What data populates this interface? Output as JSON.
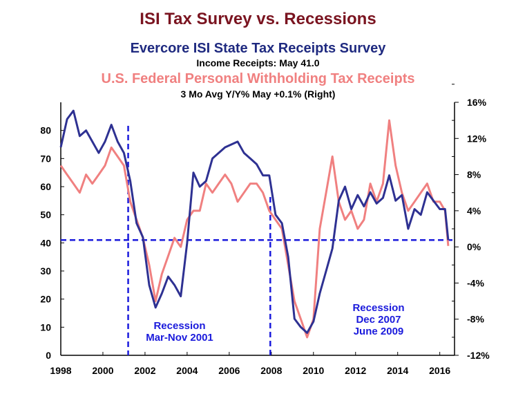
{
  "chart_data": {
    "type": "line",
    "title": "ISI Tax Survey vs. Recessions",
    "series": [
      {
        "name": "Evercore ISI State Tax Receipts Survey",
        "label": "Income Receipts:  May  41.0",
        "axis": "left",
        "color": "#2e3192",
        "x": [
          1998.0,
          1998.3,
          1998.6,
          1998.9,
          1999.2,
          1999.5,
          1999.8,
          2000.1,
          2000.4,
          2000.7,
          2001.0,
          2001.3,
          2001.6,
          2001.9,
          2002.2,
          2002.5,
          2002.8,
          2003.1,
          2003.4,
          2003.7,
          2004.0,
          2004.3,
          2004.6,
          2004.9,
          2005.2,
          2005.5,
          2005.8,
          2006.1,
          2006.4,
          2006.7,
          2007.0,
          2007.3,
          2007.6,
          2007.9,
          2008.2,
          2008.5,
          2008.8,
          2009.1,
          2009.4,
          2009.7,
          2010.0,
          2010.3,
          2010.6,
          2010.9,
          2011.2,
          2011.5,
          2011.8,
          2012.1,
          2012.4,
          2012.7,
          2013.0,
          2013.3,
          2013.6,
          2013.9,
          2014.2,
          2014.5,
          2014.8,
          2015.1,
          2015.4,
          2015.7,
          2016.0,
          2016.25,
          2016.4
        ],
        "values": [
          74,
          84,
          87,
          78,
          80,
          76,
          72,
          76,
          82,
          76,
          72,
          62,
          47,
          42,
          25,
          17,
          22,
          28,
          25,
          21,
          40,
          65,
          60,
          62,
          70,
          72,
          74,
          75,
          76,
          72,
          70,
          68,
          64,
          64,
          50,
          47,
          35,
          13,
          10,
          8,
          12,
          22,
          30,
          38,
          55,
          60,
          52,
          57,
          53,
          58,
          54,
          56,
          64,
          55,
          57,
          45,
          52,
          50,
          58,
          55,
          52,
          52,
          41
        ]
      },
      {
        "name": "U.S. Federal Personal Withholding Tax Receipts",
        "label": "3 Mo Avg  Y/Y%     May  +0.1%   (Right)",
        "axis": "right",
        "color": "#f08080",
        "x": [
          1998.0,
          1998.3,
          1998.6,
          1998.9,
          1999.2,
          1999.5,
          1999.8,
          2000.1,
          2000.4,
          2000.7,
          2001.0,
          2001.3,
          2001.6,
          2001.9,
          2002.2,
          2002.5,
          2002.8,
          2003.1,
          2003.4,
          2003.7,
          2004.0,
          2004.3,
          2004.6,
          2004.9,
          2005.2,
          2005.5,
          2005.8,
          2006.1,
          2006.4,
          2006.7,
          2007.0,
          2007.3,
          2007.6,
          2007.9,
          2008.2,
          2008.5,
          2008.8,
          2009.1,
          2009.4,
          2009.7,
          2010.0,
          2010.3,
          2010.6,
          2010.9,
          2011.2,
          2011.5,
          2011.8,
          2012.1,
          2012.4,
          2012.7,
          2013.0,
          2013.3,
          2013.6,
          2013.9,
          2014.2,
          2014.5,
          2014.8,
          2015.1,
          2015.4,
          2015.7,
          2016.0,
          2016.25,
          2016.4
        ],
        "values": [
          9,
          8,
          7,
          6,
          8,
          7,
          8,
          9,
          11,
          10,
          9,
          5,
          3,
          1,
          -2,
          -6,
          -3,
          -1,
          1,
          0,
          3,
          4,
          4,
          7,
          6,
          7,
          8,
          7,
          5,
          6,
          7,
          7,
          6,
          4,
          3,
          2,
          -2,
          -6,
          -8,
          -10,
          -8,
          2,
          6,
          10,
          5,
          3,
          4,
          2,
          3,
          7,
          5,
          7,
          14,
          9,
          6,
          4,
          5,
          6,
          7,
          5,
          5,
          4,
          0.1
        ]
      }
    ],
    "left_axis": {
      "ylim": [
        0,
        90
      ],
      "ticks": [
        0,
        10,
        20,
        30,
        40,
        50,
        60,
        70,
        80
      ]
    },
    "right_axis": {
      "ylim": [
        -12,
        16
      ],
      "ticks": [
        "-12%",
        "-8%",
        "-4%",
        "0%",
        "4%",
        "8%",
        "12%",
        "16%"
      ]
    },
    "x_axis": {
      "xlim": [
        1998,
        2016.7
      ],
      "ticks": [
        "1998",
        "2000",
        "2002",
        "2004",
        "2006",
        "2008",
        "2010",
        "2012",
        "2014",
        "2016"
      ]
    },
    "reference_line": {
      "axis": "left",
      "value": 41.0
    },
    "recessions": [
      {
        "x": 2001.2,
        "lines": [
          "Recession",
          "Mar-Nov 2001"
        ]
      },
      {
        "x": 2007.95,
        "lines": [
          "Recession",
          "Dec 2007",
          "June 2009"
        ]
      }
    ]
  }
}
